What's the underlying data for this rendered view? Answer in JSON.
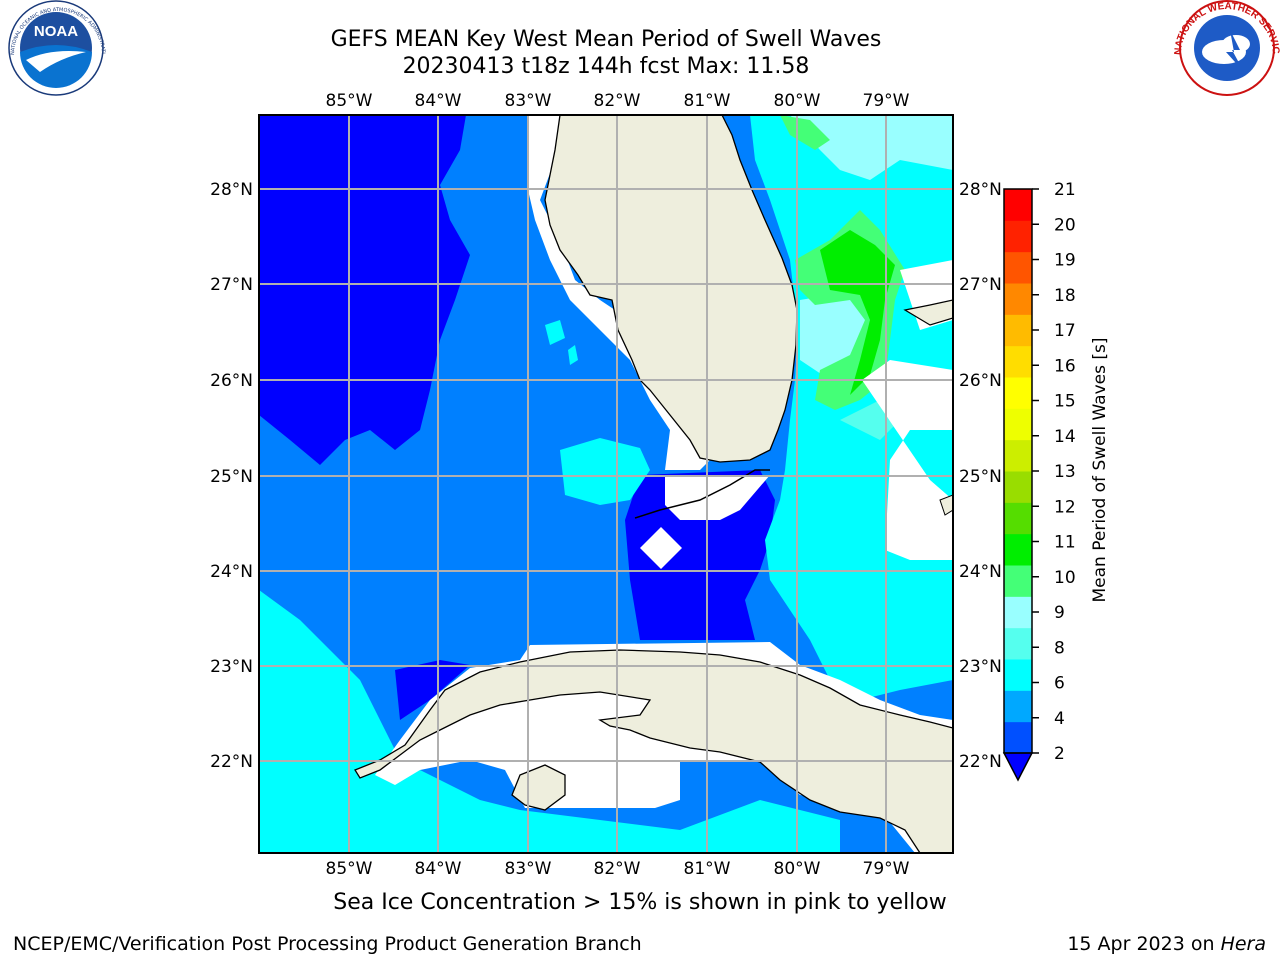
{
  "title": {
    "line1": "GEFS MEAN Key West Mean Period of Swell Waves",
    "line2": "20230413 t18z 144h fcst   Max: 11.58"
  },
  "map": {
    "lon_labels": [
      "85°W",
      "84°W",
      "83°W",
      "82°W",
      "81°W",
      "80°W",
      "79°W"
    ],
    "lat_labels_left": [
      "28°N",
      "27°N",
      "26°N",
      "25°N",
      "24°N",
      "23°N",
      "22°N"
    ],
    "lat_labels_right": [
      "28°N",
      "27°N",
      "26°N",
      "25°N",
      "24°N",
      "23°N",
      "22°N"
    ],
    "extent": {
      "lon_min": -86.0,
      "lon_max": -78.3,
      "lat_min": 21.0,
      "lat_max": 28.8
    },
    "grid": true,
    "colors": {
      "land": "#eeeedd",
      "ocean_deep": "#0000ff",
      "ocean_mid": "#0080ff",
      "ocean_light": "#00ffff",
      "gridline": "#b0b0b0"
    }
  },
  "colorbar": {
    "label": "Mean Period of Swell Waves [s]",
    "ticks": [
      "21",
      "20",
      "19",
      "18",
      "17",
      "16",
      "15",
      "14",
      "13",
      "12",
      "11",
      "10",
      "9",
      "8",
      "6",
      "4",
      "2"
    ],
    "levels": [
      2,
      4,
      6,
      7,
      8,
      9,
      10,
      11,
      12,
      13,
      14,
      15,
      16,
      17,
      18,
      19,
      20,
      21
    ],
    "colors": [
      "#0050ff",
      "#00a8ff",
      "#00ffff",
      "#55ffee",
      "#99ffff",
      "#44ff77",
      "#00ee00",
      "#55dd00",
      "#99dd00",
      "#ccee00",
      "#eeff00",
      "#ffff00",
      "#ffdd00",
      "#ffbb00",
      "#ff8800",
      "#ff5500",
      "#ff2200",
      "#ff0000"
    ],
    "under_color": "#0000ff"
  },
  "chart_data": {
    "type": "heatmap",
    "title": "GEFS MEAN Key West Mean Period of Swell Waves",
    "subtitle": "20230413 t18z 144h fcst   Max: 11.58",
    "colorbar_label": "Mean Period of Swell Waves [s]",
    "max_value": 11.58,
    "units": "s",
    "value_range": [
      2,
      21
    ]
  },
  "footer": {
    "note": "Sea Ice Concentration > 15% is shown in pink to yellow",
    "left": "NCEP/EMC/Verification Post Processing Product Generation Branch",
    "right_prefix": "15 Apr 2023 on ",
    "right_machine": "Hera"
  },
  "logos": {
    "noaa_text": "NOAA",
    "noaa_ring": "NATIONAL OCEANIC AND ATMOSPHERIC ADMINISTRATION · U.S. DEPARTMENT OF COMMERCE",
    "nws_ring": "NATIONAL WEATHER SERVICE"
  }
}
